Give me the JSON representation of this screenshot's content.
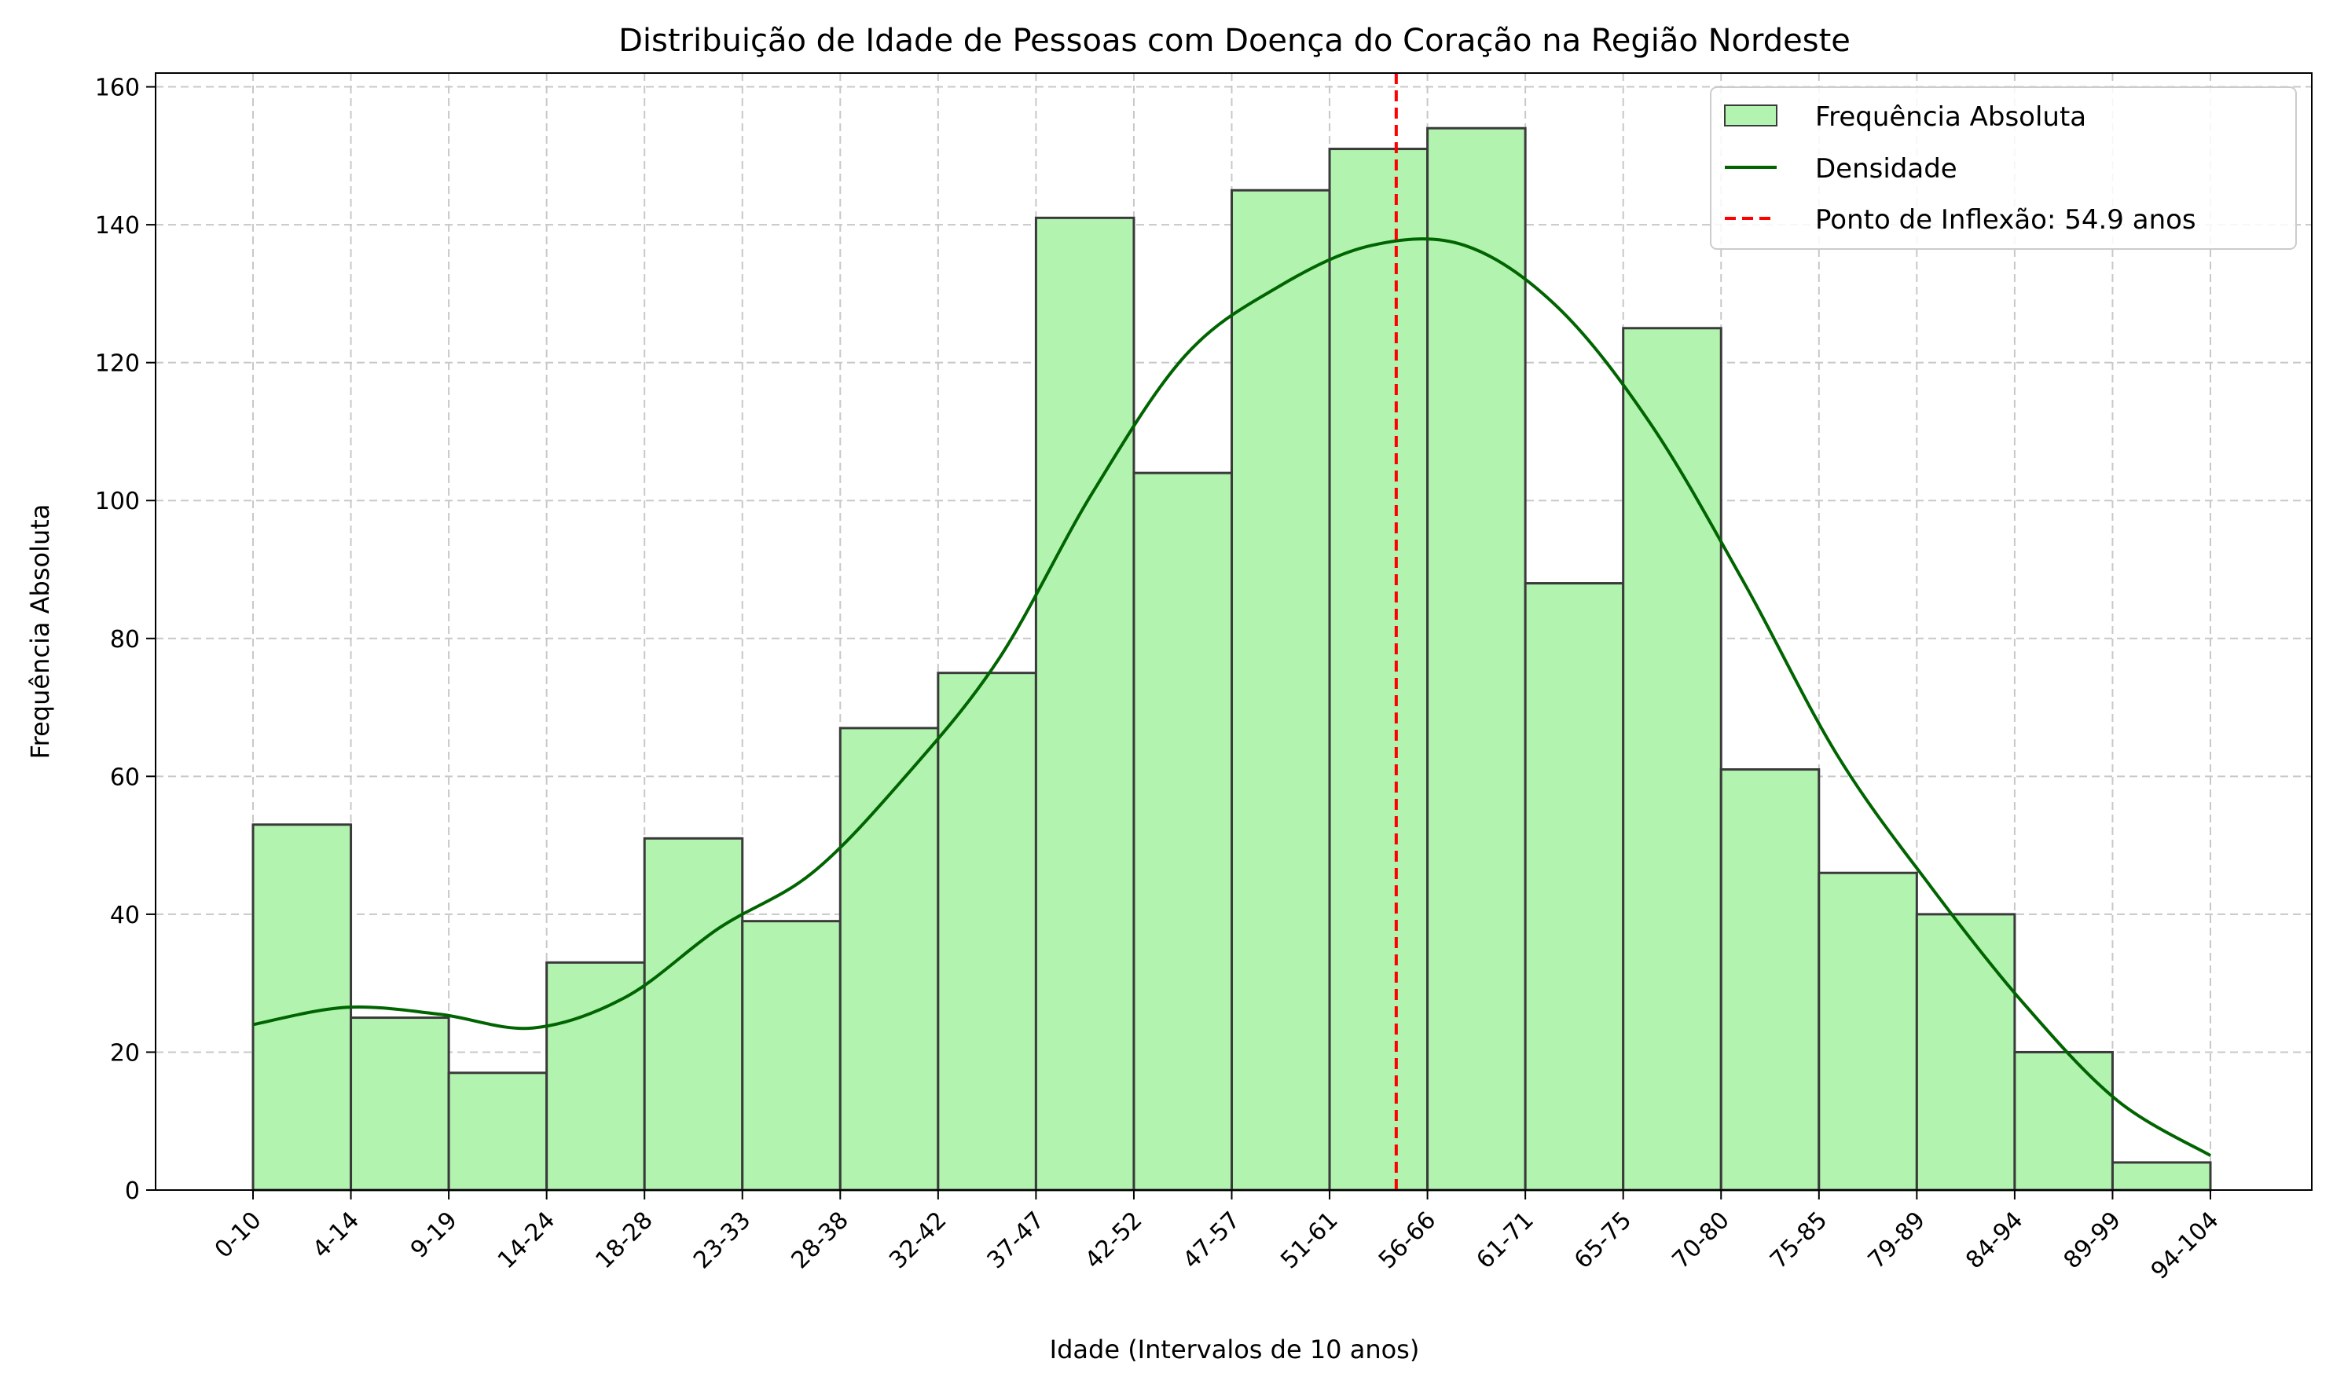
{
  "chart_data": {
    "type": "bar",
    "title": "Distribuição de Idade de Pessoas com Doença do Coração na Região Nordeste",
    "xlabel": "Idade (Intervalos de 10 anos)",
    "ylabel": "Frequência Absoluta",
    "ylim": [
      0,
      162
    ],
    "yticks": [
      0,
      20,
      40,
      60,
      80,
      100,
      120,
      140,
      160
    ],
    "tick_labels": [
      "0-10",
      "4-14",
      "9-19",
      "14-24",
      "18-28",
      "23-33",
      "28-38",
      "32-42",
      "37-47",
      "42-52",
      "47-57",
      "51-61",
      "56-66",
      "61-71",
      "65-75",
      "70-80",
      "75-85",
      "79-89",
      "84-94",
      "89-99",
      "94-104"
    ],
    "values": [
      53,
      25,
      17,
      33,
      51,
      39,
      67,
      75,
      141,
      104,
      145,
      151,
      154,
      88,
      125,
      61,
      46,
      40,
      20,
      4
    ],
    "density": [
      24,
      26.5,
      25.5,
      23.5,
      28,
      38,
      46,
      60,
      77,
      101,
      121,
      131,
      137,
      137,
      128,
      111,
      88,
      63,
      44,
      27,
      13,
      5
    ],
    "inflection": 54.9,
    "grid": true,
    "legend_position": "top-right",
    "legend": [
      "Frequência Absoluta",
      "Densidade",
      "Ponto de Inflexão: 54.9 anos"
    ],
    "colors": {
      "bar_fill": "#b2f3b0",
      "bar_edge": "#3a3a3a",
      "density_line": "#006400",
      "inflection_line": "#ff0000",
      "grid": "#c8c8c8"
    }
  }
}
